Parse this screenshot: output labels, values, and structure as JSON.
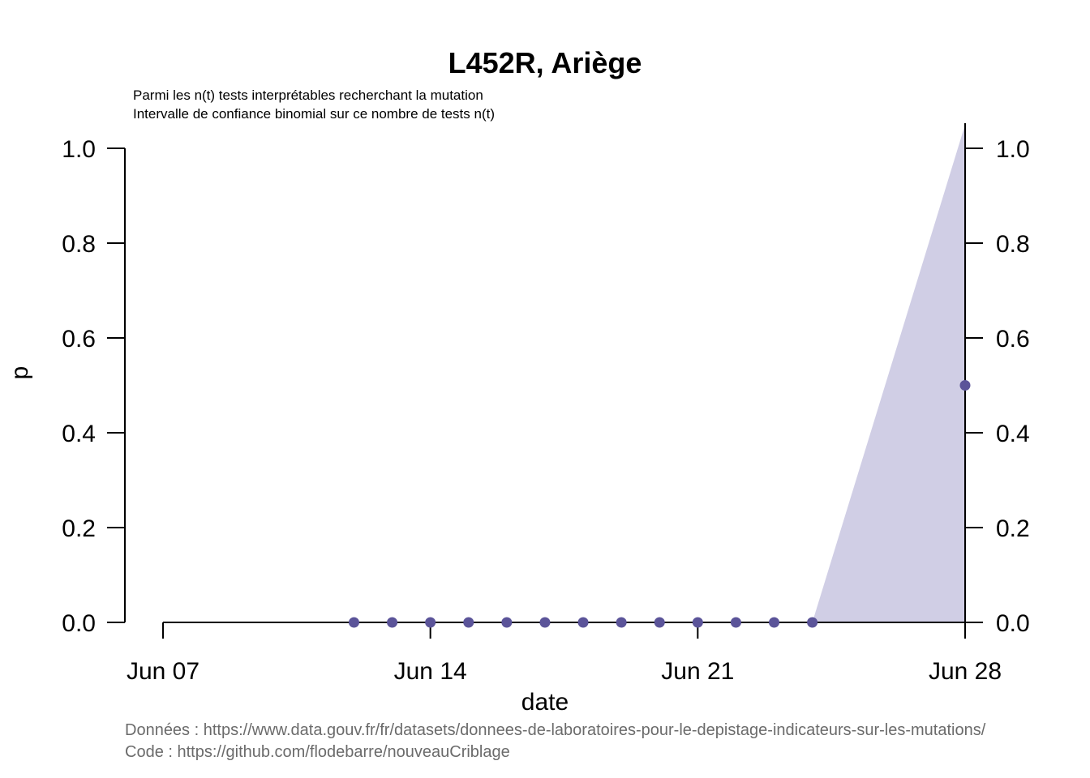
{
  "chart_data": {
    "type": "line",
    "title": "L452R, Ariège",
    "subtitle_lines": [
      "Parmi les n(t) tests interprétables recherchant la mutation",
      "Intervalle de confiance binomial sur ce nombre de tests n(t)"
    ],
    "xlabel": "date",
    "ylabel": "p",
    "xlim": [
      "2021-06-07",
      "2021-06-28"
    ],
    "ylim": [
      0,
      1
    ],
    "x_ticks": [
      {
        "date": "2021-06-07",
        "label": "Jun 07"
      },
      {
        "date": "2021-06-14",
        "label": "Jun 14"
      },
      {
        "date": "2021-06-21",
        "label": "Jun 21"
      },
      {
        "date": "2021-06-28",
        "label": "Jun 28"
      }
    ],
    "y_ticks": [
      "0.0",
      "0.2",
      "0.4",
      "0.6",
      "0.8",
      "1.0"
    ],
    "right_axis": true,
    "grid": false,
    "series": [
      {
        "values": [
          {
            "x": "2021-06-12",
            "y": 0
          },
          {
            "x": "2021-06-13",
            "y": 0
          },
          {
            "x": "2021-06-14",
            "y": 0
          },
          {
            "x": "2021-06-15",
            "y": 0
          },
          {
            "x": "2021-06-16",
            "y": 0
          },
          {
            "x": "2021-06-17",
            "y": 0
          },
          {
            "x": "2021-06-18",
            "y": 0
          },
          {
            "x": "2021-06-19",
            "y": 0
          },
          {
            "x": "2021-06-20",
            "y": 0
          },
          {
            "x": "2021-06-21",
            "y": 0
          },
          {
            "x": "2021-06-22",
            "y": 0
          },
          {
            "x": "2021-06-23",
            "y": 0
          },
          {
            "x": "2021-06-24",
            "y": 0
          },
          {
            "x": "2021-06-28",
            "y": 0.5
          }
        ]
      }
    ],
    "confidence_band": {
      "values": [
        {
          "x": "2021-06-24",
          "lower": 0,
          "upper": 0
        },
        {
          "x": "2021-06-28",
          "lower": 0,
          "upper": 1.05
        }
      ]
    },
    "colors": {
      "points": "#5b5499",
      "band": "#d0cee5"
    },
    "captions": [
      "Données : https://www.data.gouv.fr/fr/datasets/donnees-de-laboratoires-pour-le-depistage-indicateurs-sur-les-mutations/",
      "Code : https://github.com/flodebarre/nouveauCriblage"
    ]
  }
}
